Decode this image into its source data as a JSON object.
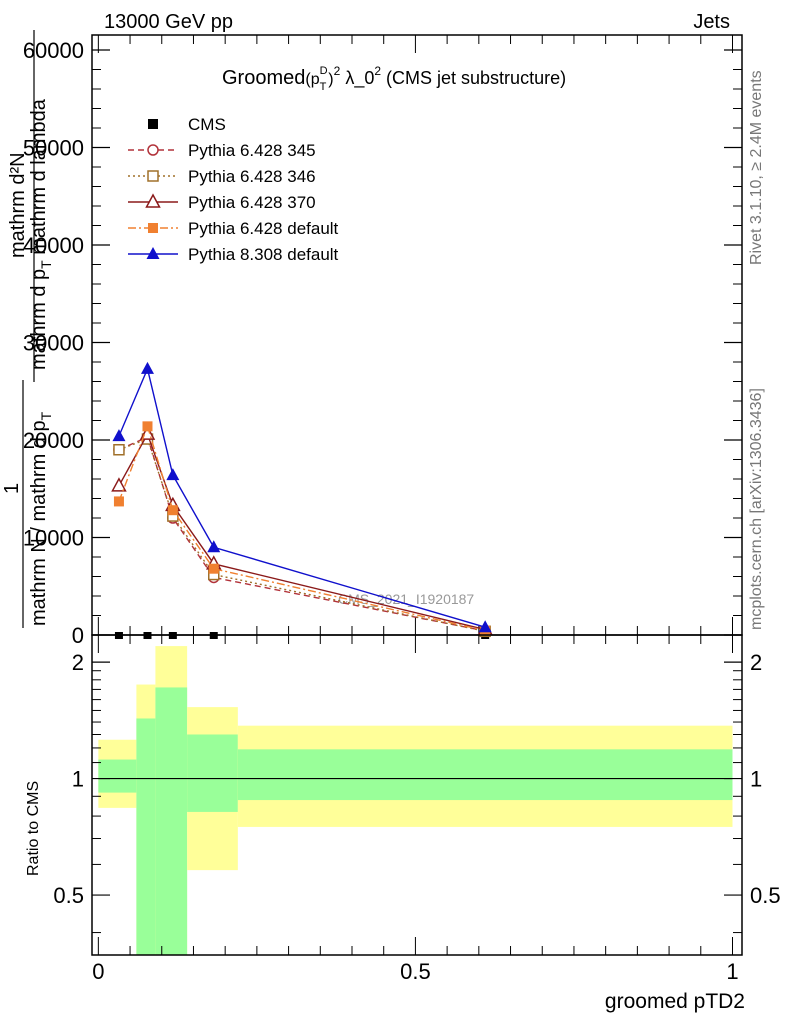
{
  "header": {
    "energy": "13000 GeV pp",
    "process": "Jets"
  },
  "side": {
    "rivet": "Rivet 3.1.10, ≥ 2.4M events",
    "mcplots": "mcplots.cern.ch [arXiv:1306.3436]"
  },
  "main_plot": {
    "title": "Groomed",
    "title_p": "(p",
    "title_sup_D": "D",
    "title_sub_T": "T",
    "title_close": ")",
    "title_sup_2": "2",
    "title_lambda": " λ_0",
    "title_sup_2b": "2",
    "title_rest": " (CMS jet substructure)",
    "ylabel_line1": "mathrm d²N",
    "ylabel_line2": "mathrm d p",
    "ylabel_line2_sub": "T",
    "ylabel_line2_rest": " mathrm d lambda",
    "ylabel_one": "1",
    "ylabel_frac": "mathrm N / mathrm d p",
    "ylabel_frac_sub": "T",
    "watermark": "CMS_2021_I1920187"
  },
  "ratio_plot": {
    "ylabel": "Ratio to CMS",
    "xlabel": "groomed pTD2"
  },
  "legend": [
    {
      "name": "CMS",
      "color": "#000000",
      "marker": "square-filled",
      "dash": "none"
    },
    {
      "name": "Pythia 6.428 345",
      "color": "#b2323a",
      "marker": "circle-open",
      "dash": "dashed"
    },
    {
      "name": "Pythia 6.428 346",
      "color": "#a0702a",
      "marker": "square-open",
      "dash": "dotted"
    },
    {
      "name": "Pythia 6.428 370",
      "color": "#8b1a1a",
      "marker": "triangle-open",
      "dash": "solid"
    },
    {
      "name": "Pythia 6.428 default",
      "color": "#f08030",
      "marker": "square-filled",
      "dash": "dashdot"
    },
    {
      "name": "Pythia 8.308 default",
      "color": "#1010cc",
      "marker": "triangle-filled",
      "dash": "solid"
    }
  ],
  "chart_data": [
    {
      "type": "line",
      "x": [
        0.0325,
        0.0775,
        0.1175,
        0.182,
        0.61
      ],
      "series": [
        {
          "name": "CMS",
          "values": [
            0,
            0,
            0,
            0,
            0
          ]
        },
        {
          "name": "Pythia 6.428 345",
          "values": [
            19000,
            20300,
            12000,
            5900,
            420
          ]
        },
        {
          "name": "Pythia 6.428 346",
          "values": [
            19000,
            20100,
            12200,
            6200,
            380
          ]
        },
        {
          "name": "Pythia 6.428 370",
          "values": [
            15300,
            20600,
            13300,
            7300,
            560
          ]
        },
        {
          "name": "Pythia 6.428 default",
          "values": [
            13700,
            21400,
            12800,
            6800,
            450
          ]
        },
        {
          "name": "Pythia 8.308 default",
          "values": [
            20400,
            27300,
            16400,
            9000,
            800
          ]
        }
      ],
      "xlim": [
        -0.01,
        1.015
      ],
      "ylim": [
        0,
        60000
      ],
      "yticks": [
        "0",
        "10000",
        "20000",
        "30000",
        "40000",
        "50000",
        "60000"
      ],
      "grid": false,
      "legend_position": "top-left"
    },
    {
      "type": "area",
      "bins": [
        [
          0.0,
          0.06
        ],
        [
          0.06,
          0.09
        ],
        [
          0.09,
          0.14
        ],
        [
          0.14,
          0.22
        ],
        [
          0.22,
          1.0
        ]
      ],
      "band_outer": [
        [
          0.84,
          1.26
        ],
        [
          0.35,
          1.75
        ],
        [
          0.35,
          2.2
        ],
        [
          0.58,
          1.53
        ],
        [
          0.75,
          1.37
        ]
      ],
      "band_inner": [
        [
          0.92,
          1.12
        ],
        [
          0.35,
          1.43
        ],
        [
          0.35,
          1.72
        ],
        [
          0.82,
          1.3
        ],
        [
          0.88,
          1.19
        ]
      ],
      "ylim": [
        0.35,
        2.35
      ],
      "log_y": true,
      "yticks": [
        "0.5",
        "1",
        "2"
      ],
      "xticks": [
        "0",
        "0.5",
        "1"
      ],
      "reference_line": 1,
      "colors": {
        "outer": "#ffff99",
        "inner": "#99ff99"
      }
    }
  ]
}
